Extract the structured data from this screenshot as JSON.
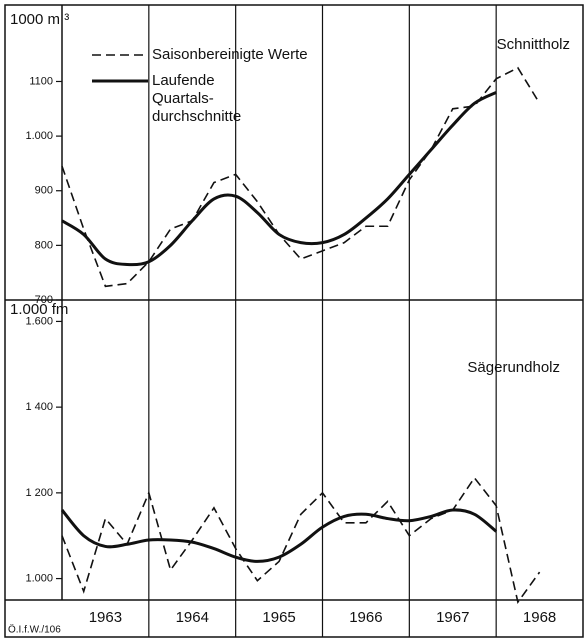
{
  "source": "Ö.I.f.W./106",
  "chart_data": [
    {
      "type": "line",
      "unit": "1000 m ³",
      "title": "Schnittholz",
      "x": [
        1963,
        1963.25,
        1963.5,
        1963.75,
        1964,
        1964.25,
        1964.5,
        1964.75,
        1965,
        1965.25,
        1965.5,
        1965.75,
        1966,
        1966.25,
        1966.5,
        1966.75,
        1967,
        1967.25,
        1967.5,
        1967.75,
        1968,
        1968.25,
        1968.5
      ],
      "xlim": [
        1963,
        1969
      ],
      "ylim": [
        700,
        1240
      ],
      "yticks": [
        700,
        800,
        900,
        {
          "value": 1000,
          "label": "1.000"
        },
        1100
      ],
      "series": [
        {
          "name": "Saisonbereinigte Werte",
          "color": "#111111",
          "dashed": true,
          "values": [
            945,
            830,
            725,
            730,
            770,
            830,
            845,
            915,
            930,
            880,
            820,
            775,
            790,
            805,
            835,
            835,
            920,
            975,
            1050,
            1055,
            1105,
            1125,
            1060
          ]
        },
        {
          "name": "Laufende Quartals-durchschnitte",
          "color": "#111111",
          "dashed": false,
          "values": [
            845,
            820,
            775,
            765,
            770,
            800,
            845,
            885,
            890,
            860,
            820,
            805,
            805,
            820,
            850,
            885,
            930,
            975,
            1020,
            1060,
            1080,
            null,
            null
          ]
        }
      ]
    },
    {
      "type": "line",
      "unit": "1.000 fm",
      "title": "Sägerundholz",
      "x": [
        1963,
        1963.25,
        1963.5,
        1963.75,
        1964,
        1964.25,
        1964.5,
        1964.75,
        1965,
        1965.25,
        1965.5,
        1965.75,
        1966,
        1966.25,
        1966.5,
        1966.75,
        1967,
        1967.25,
        1967.5,
        1967.75,
        1968,
        1968.25,
        1968.5
      ],
      "xlim": [
        1963,
        1969
      ],
      "xticks": [
        1964,
        1965,
        1966,
        1967,
        1968
      ],
      "years": [
        "1963",
        "1964",
        "1965",
        "1966",
        "1967",
        "1968"
      ],
      "ylim": [
        950,
        1650
      ],
      "yticks": [
        {
          "value": 1000,
          "label": "1.000"
        },
        {
          "value": 1200,
          "label": "1 200"
        },
        {
          "value": 1400,
          "label": "1 400"
        },
        {
          "value": 1600,
          "label": "1.600"
        }
      ],
      "series": [
        {
          "name": "Saisonbereinigte Werte",
          "color": "#111111",
          "dashed": true,
          "values": [
            1100,
            970,
            1140,
            1080,
            1200,
            1020,
            1090,
            1165,
            1070,
            995,
            1040,
            1150,
            1200,
            1130,
            1130,
            1180,
            1100,
            1140,
            1160,
            1235,
            1170,
            945,
            1015
          ]
        },
        {
          "name": "Laufende Quartals-durchschnitte",
          "color": "#111111",
          "dashed": false,
          "values": [
            1160,
            1100,
            1075,
            1080,
            1090,
            1090,
            1085,
            1070,
            1050,
            1040,
            1050,
            1080,
            1120,
            1145,
            1150,
            1140,
            1135,
            1145,
            1160,
            1150,
            1110,
            null,
            null
          ]
        }
      ]
    }
  ]
}
